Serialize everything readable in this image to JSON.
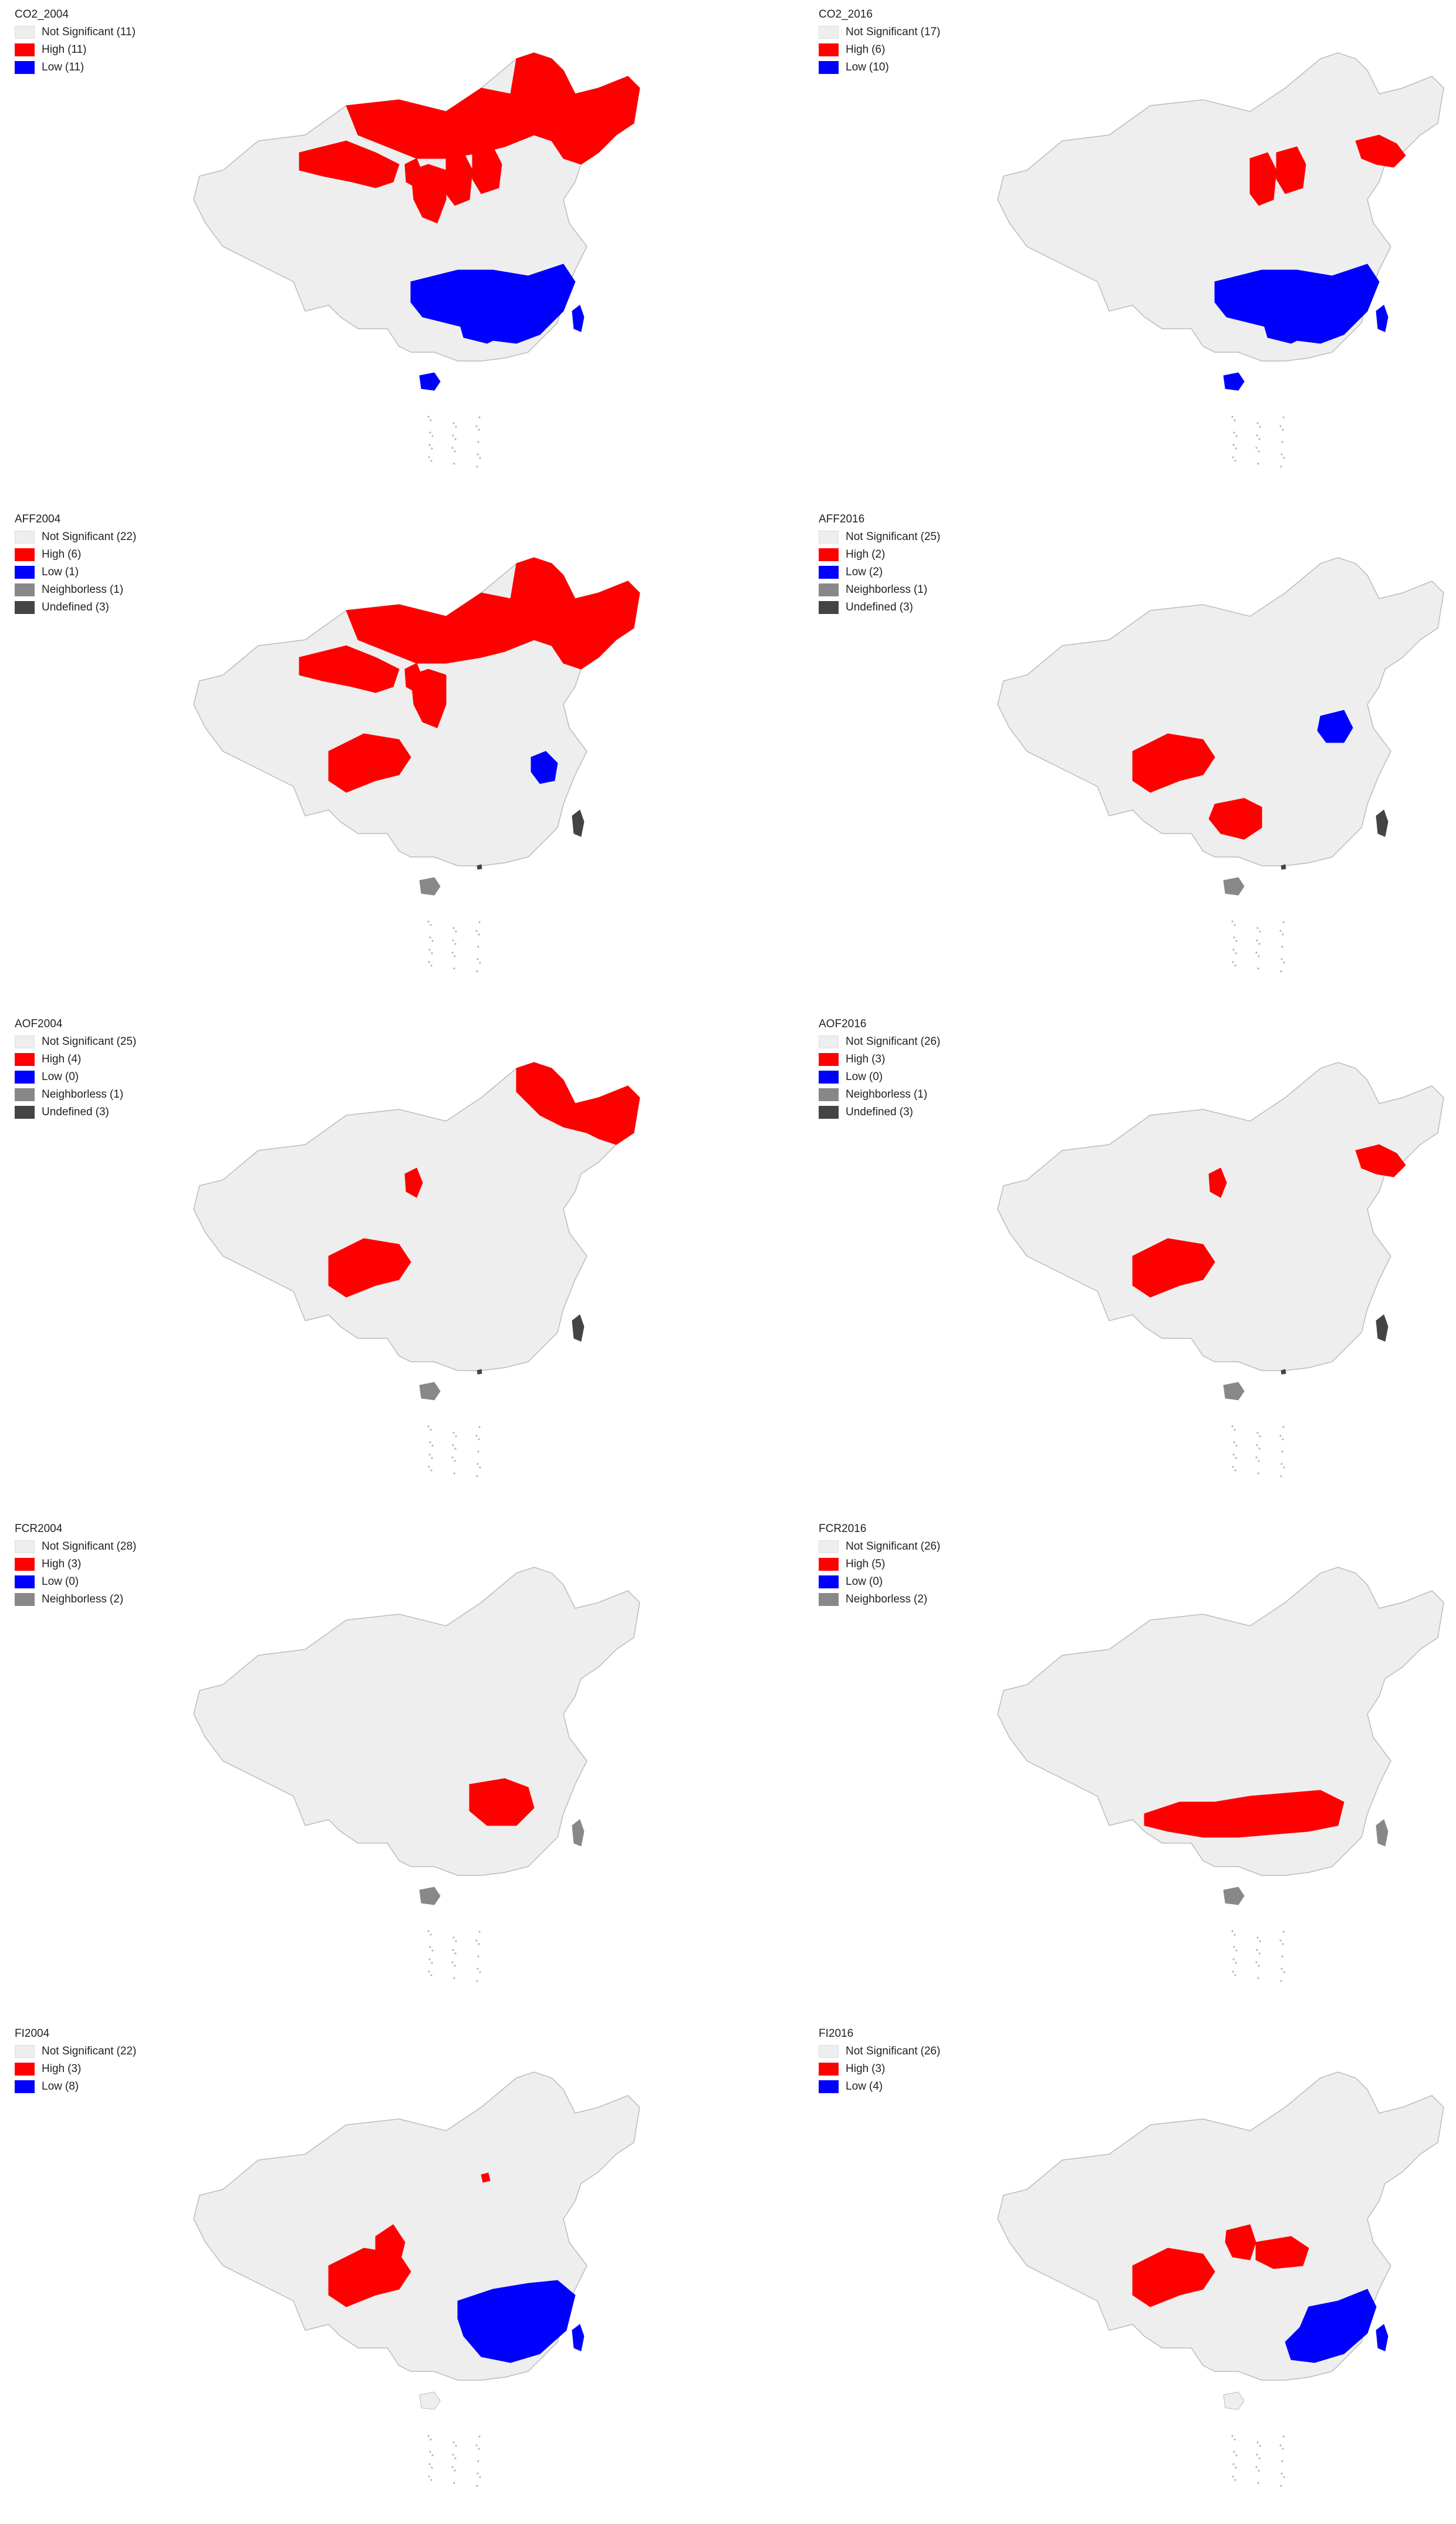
{
  "colors": {
    "Not Significant": "#eeeeee",
    "High": "#ff0000",
    "Low": "#0000ff",
    "Neighborless": "#888888",
    "Undefined": "#444444"
  },
  "panels": [
    {
      "title": "CO2_2004",
      "legend": [
        {
          "label": "Not Significant",
          "count": "11"
        },
        {
          "label": "High",
          "count": "11"
        },
        {
          "label": "Low",
          "count": "11"
        }
      ],
      "regions": {
        "northeast": "High",
        "nei_mongol": "High",
        "gansu": "High",
        "ningxia": "High",
        "shaanxi": "High",
        "shanxi": "High",
        "hebei": "High",
        "south_a": "Low",
        "south_b": "Low",
        "hainan": "Low",
        "taiwan": "Low"
      }
    },
    {
      "title": "CO2_2016",
      "legend": [
        {
          "label": "Not Significant",
          "count": "17"
        },
        {
          "label": "High",
          "count": "6"
        },
        {
          "label": "Low",
          "count": "10"
        }
      ],
      "regions": {
        "liaoning": "High",
        "hebei": "High",
        "shanxi": "High",
        "south_a": "Low",
        "south_b": "Low",
        "hainan": "Low",
        "taiwan": "Low"
      }
    },
    {
      "title": "AFF2004",
      "legend": [
        {
          "label": "Not Significant",
          "count": "22"
        },
        {
          "label": "High",
          "count": "6"
        },
        {
          "label": "Low",
          "count": "1"
        },
        {
          "label": "Neighborless",
          "count": "1"
        },
        {
          "label": "Undefined",
          "count": "3"
        }
      ],
      "regions": {
        "northeast": "High",
        "nei_mongol": "High",
        "gansu": "High",
        "ningxia": "High",
        "shaanxi": "High",
        "sichuan": "High",
        "zhejiang": "Low",
        "hainan": "Neighborless",
        "taiwan": "Undefined",
        "hongkong": "Undefined"
      }
    },
    {
      "title": "AFF2016",
      "legend": [
        {
          "label": "Not Significant",
          "count": "25"
        },
        {
          "label": "High",
          "count": "2"
        },
        {
          "label": "Low",
          "count": "2"
        },
        {
          "label": "Neighborless",
          "count": "1"
        },
        {
          "label": "Undefined",
          "count": "3"
        }
      ],
      "regions": {
        "sichuan": "High",
        "guangxi": "High",
        "jiangsu": "Low",
        "hainan": "Neighborless",
        "taiwan": "Undefined",
        "hongkong": "Undefined"
      }
    },
    {
      "title": "AOF2004",
      "legend": [
        {
          "label": "Not Significant",
          "count": "25"
        },
        {
          "label": "High",
          "count": "4"
        },
        {
          "label": "Low",
          "count": "0"
        },
        {
          "label": "Neighborless",
          "count": "1"
        },
        {
          "label": "Undefined",
          "count": "3"
        }
      ],
      "regions": {
        "heilongjiang": "High",
        "ningxia": "High",
        "sichuan": "High",
        "hainan": "Neighborless",
        "taiwan": "Undefined",
        "hongkong": "Undefined"
      }
    },
    {
      "title": "AOF2016",
      "legend": [
        {
          "label": "Not Significant",
          "count": "26"
        },
        {
          "label": "High",
          "count": "3"
        },
        {
          "label": "Low",
          "count": "0"
        },
        {
          "label": "Neighborless",
          "count": "1"
        },
        {
          "label": "Undefined",
          "count": "3"
        }
      ],
      "regions": {
        "liaoning": "High",
        "ningxia": "High",
        "sichuan": "High",
        "hainan": "Neighborless",
        "taiwan": "Undefined",
        "hongkong": "Undefined"
      }
    },
    {
      "title": "FCR2004",
      "legend": [
        {
          "label": "Not Significant",
          "count": "28"
        },
        {
          "label": "High",
          "count": "3"
        },
        {
          "label": "Low",
          "count": "0"
        },
        {
          "label": "Neighborless",
          "count": "2"
        }
      ],
      "regions": {
        "jiangxi": "High",
        "hainan": "Neighborless",
        "taiwan": "Neighborless"
      }
    },
    {
      "title": "FCR2016",
      "legend": [
        {
          "label": "Not Significant",
          "count": "26"
        },
        {
          "label": "High",
          "count": "5"
        },
        {
          "label": "Low",
          "count": "0"
        },
        {
          "label": "Neighborless",
          "count": "2"
        }
      ],
      "regions": {
        "south_belt": "High",
        "hainan": "Neighborless",
        "taiwan": "Neighborless"
      }
    },
    {
      "title": "FI2004",
      "legend": [
        {
          "label": "Not Significant",
          "count": "22"
        },
        {
          "label": "High",
          "count": "3"
        },
        {
          "label": "Low",
          "count": "8"
        }
      ],
      "regions": {
        "sichuan": "High",
        "gansu_s": "High",
        "beijing": "High",
        "southeast": "Low",
        "taiwan": "Low"
      }
    },
    {
      "title": "FI2016",
      "legend": [
        {
          "label": "Not Significant",
          "count": "26"
        },
        {
          "label": "High",
          "count": "3"
        },
        {
          "label": "Low",
          "count": "4"
        }
      ],
      "regions": {
        "sichuan": "High",
        "shaanxi_s": "High",
        "hubei": "High",
        "fujian_guangdong": "Low",
        "taiwan": "Low"
      }
    }
  ]
}
